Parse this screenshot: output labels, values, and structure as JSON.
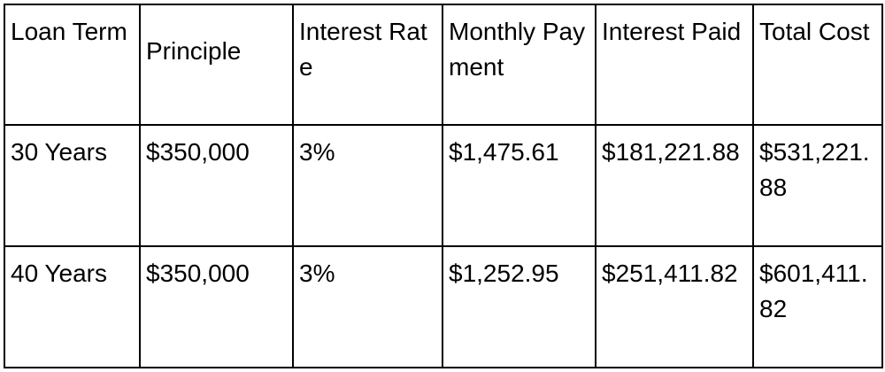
{
  "table": {
    "headers": [
      "Loan Term",
      "Principle",
      "Interest Rate",
      "Monthly Payment",
      "Interest Paid",
      "Total Cost"
    ],
    "rows": [
      [
        "30 Years",
        "$350,000",
        "3%",
        "$1,475.61",
        "$181,221.88",
        "$531,221.88"
      ],
      [
        "40 Years",
        "$350,000",
        "3%",
        "$1,252.95",
        "$251,411.82",
        "$601,411.82"
      ]
    ]
  }
}
